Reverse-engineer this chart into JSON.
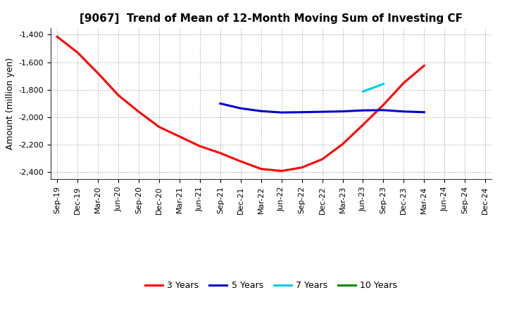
{
  "title": "[9067]  Trend of Mean of 12-Month Moving Sum of Investing CF",
  "ylabel": "Amount (million yen)",
  "background_color": "#ffffff",
  "plot_background": "#ffffff",
  "grid_color": "#999999",
  "ylim": [
    -2450,
    -1350
  ],
  "yticks": [
    -2400,
    -2200,
    -2000,
    -1800,
    -1600,
    -1400
  ],
  "series_3yr": {
    "label": "3 Years",
    "color": "#ff0000",
    "x": [
      "Sep-19",
      "Dec-19",
      "Mar-20",
      "Jun-20",
      "Sep-20",
      "Dec-20",
      "Mar-21",
      "Jun-21",
      "Sep-21",
      "Dec-21",
      "Mar-22",
      "Jun-22",
      "Sep-22",
      "Dec-22",
      "Mar-23",
      "Jun-23",
      "Sep-23",
      "Dec-23",
      "Mar-24"
    ],
    "y": [
      -1415,
      -1530,
      -1680,
      -1840,
      -1960,
      -2070,
      -2140,
      -2210,
      -2260,
      -2320,
      -2375,
      -2390,
      -2365,
      -2305,
      -2195,
      -2055,
      -1910,
      -1750,
      -1625
    ]
  },
  "series_5yr": {
    "label": "5 Years",
    "color": "#0000cc",
    "x": [
      "Sep-21",
      "Dec-21",
      "Mar-22",
      "Jun-22",
      "Sep-22",
      "Dec-22",
      "Mar-23",
      "Jun-23",
      "Sep-23",
      "Dec-23",
      "Mar-24"
    ],
    "y": [
      -1900,
      -1935,
      -1955,
      -1965,
      -1963,
      -1960,
      -1957,
      -1950,
      -1948,
      -1958,
      -1963
    ]
  },
  "series_7yr": {
    "label": "7 Years",
    "color": "#00ccee",
    "x": [
      "Jun-23",
      "Sep-23"
    ],
    "y": [
      -1813,
      -1758
    ]
  },
  "series_10yr": {
    "label": "10 Years",
    "color": "#008800",
    "x": [],
    "y": []
  },
  "xtick_labels": [
    "Sep-19",
    "Dec-19",
    "Mar-20",
    "Jun-20",
    "Sep-20",
    "Dec-20",
    "Mar-21",
    "Jun-21",
    "Sep-21",
    "Dec-21",
    "Mar-22",
    "Jun-22",
    "Sep-22",
    "Dec-22",
    "Mar-23",
    "Jun-23",
    "Sep-23",
    "Dec-23",
    "Mar-24",
    "Jun-24",
    "Sep-24",
    "Dec-24"
  ],
  "line_width": 2.2,
  "title_fontsize": 11,
  "ylabel_fontsize": 9,
  "tick_fontsize": 8,
  "legend_fontsize": 9
}
